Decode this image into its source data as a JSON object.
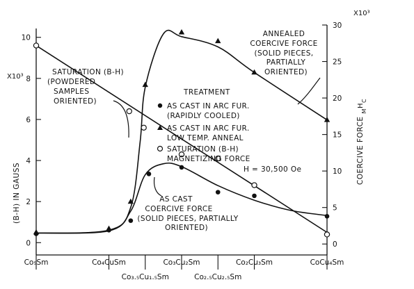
{
  "chart_data": {
    "type": "line",
    "x_categories": [
      "Co₅Sm",
      "Co₄CuSm",
      "Co₃.₅Cu₁.₅Sm",
      "Co₃Cu₂Sm",
      "Co₂.₅Cu₂.₅Sm",
      "Co₂Cu₃Sm",
      "CoCu₄Sm"
    ],
    "x_positions": [
      0,
      1,
      1.5,
      2,
      2.5,
      3,
      4
    ],
    "x_labels_top": [
      {
        "x": 0,
        "text": "Co₅Sm"
      },
      {
        "x": 1,
        "text": "Co₄CuSm"
      },
      {
        "x": 2,
        "text": "Co₃Cu₂Sm"
      },
      {
        "x": 3,
        "text": "Co₂Cu₃Sm"
      },
      {
        "x": 4,
        "text": "CoCu₄Sm"
      }
    ],
    "x_labels_bottom": [
      {
        "x": 1.5,
        "text": "Co₃.₅Cu₁.₅Sm"
      },
      {
        "x": 2.5,
        "text": "Co₂.₅Cu₂.₅Sm"
      }
    ],
    "y_left": {
      "label": "(B-H) IN GAUSS",
      "multiplier": "X10³",
      "ticks": [
        0,
        2,
        4,
        6,
        8,
        10
      ],
      "range": [
        -0.6,
        10.6
      ]
    },
    "y_right": {
      "label": "COERCIVE FORCE",
      "label_subscript": "M",
      "label_superscript": "H",
      "label_suffix": "C",
      "multiplier": "X10³",
      "ticks": [
        0,
        5,
        10,
        15,
        20,
        25,
        30
      ],
      "range": [
        -1.5,
        30
      ]
    },
    "series": [
      {
        "axis": "left",
        "curve": [
          [
            0,
            9.6
          ],
          [
            4,
            0.5
          ]
        ],
        "points": [
          {
            "marker": "open-circle",
            "x": 0,
            "y": 9.6
          },
          {
            "marker": "open-circle",
            "x": 1.28,
            "y": 6.4
          },
          {
            "marker": "open-circle",
            "x": 1.48,
            "y": 5.6
          },
          {
            "marker": "open-circle",
            "x": 2,
            "y": 4.3
          },
          {
            "marker": "open-circle",
            "x": 2.5,
            "y": 4.1
          },
          {
            "marker": "open-circle",
            "x": 3,
            "y": 2.8
          },
          {
            "marker": "open-circle",
            "x": 4,
            "y": 0.4
          }
        ]
      },
      {
        "axis": "right",
        "curve": [
          [
            0,
            1.5
          ],
          [
            1,
            1.8
          ],
          [
            1.3,
            4.5
          ],
          [
            1.5,
            9.5
          ],
          [
            1.75,
            11.0
          ],
          [
            2,
            10.6
          ],
          [
            2.5,
            8.0
          ],
          [
            3,
            6.0
          ],
          [
            3.5,
            4.6
          ],
          [
            4,
            3.9
          ]
        ],
        "points": [
          {
            "marker": "filled-circle",
            "x": 0,
            "y": 1.4
          },
          {
            "marker": "filled-circle",
            "x": 1,
            "y": 1.9
          },
          {
            "marker": "filled-circle",
            "x": 1.3,
            "y": 3.2
          },
          {
            "marker": "filled-circle",
            "x": 1.55,
            "y": 9.6
          },
          {
            "marker": "filled-circle",
            "x": 2,
            "y": 10.5
          },
          {
            "marker": "filled-circle",
            "x": 2.5,
            "y": 7.1
          },
          {
            "marker": "filled-circle",
            "x": 3,
            "y": 6.6
          },
          {
            "marker": "filled-circle",
            "x": 4,
            "y": 3.8
          }
        ]
      },
      {
        "axis": "right",
        "curve": [
          [
            0,
            1.5
          ],
          [
            1,
            1.9
          ],
          [
            1.3,
            5.0
          ],
          [
            1.43,
            14.0
          ],
          [
            1.5,
            21.5
          ],
          [
            1.75,
            28.8
          ],
          [
            2,
            28.4
          ],
          [
            2.5,
            27.0
          ],
          [
            3,
            23.5
          ],
          [
            4,
            17.0
          ]
        ],
        "points": [
          {
            "marker": "filled-triangle",
            "x": 0,
            "y": 1.6
          },
          {
            "marker": "filled-triangle",
            "x": 1,
            "y": 2.1
          },
          {
            "marker": "filled-triangle",
            "x": 1.3,
            "y": 5.8
          },
          {
            "marker": "filled-triangle",
            "x": 1.5,
            "y": 21.8
          },
          {
            "marker": "filled-triangle",
            "x": 2,
            "y": 29.0
          },
          {
            "marker": "filled-triangle",
            "x": 2.5,
            "y": 27.8
          },
          {
            "marker": "filled-triangle",
            "x": 3,
            "y": 23.5
          },
          {
            "marker": "filled-triangle",
            "x": 4,
            "y": 17.0
          }
        ]
      }
    ],
    "legend": {
      "title": "TREATMENT",
      "items": [
        {
          "marker": "filled-circle",
          "lines": [
            "AS CAST IN ARC FUR.",
            "(RAPIDLY COOLED)"
          ]
        },
        {
          "marker": "filled-triangle",
          "lines": [
            "AS CAST IN ARC FUR.",
            "LOW TEMP. ANNEAL"
          ]
        },
        {
          "marker": "open-circle",
          "lines": [
            "SATURATION (B-H)",
            "MAGNETIZING FORCE"
          ]
        }
      ],
      "note": "H = 30,500 Oe"
    },
    "annotations": [
      {
        "id": "annealed",
        "lines": [
          "ANNEALED",
          "COERCIVE FORCE",
          "(SOLID PIECES,",
          "PARTIALLY",
          "ORIENTED)"
        ]
      },
      {
        "id": "saturation",
        "lines": [
          "SATURATION (B-H)",
          "(POWDERED",
          "SAMPLES",
          "ORIENTED)"
        ]
      },
      {
        "id": "ascast",
        "lines": [
          "AS CAST",
          "COERCIVE FORCE",
          "(SOLID PIECES, PARTIALLY",
          "ORIENTED)"
        ]
      }
    ]
  }
}
